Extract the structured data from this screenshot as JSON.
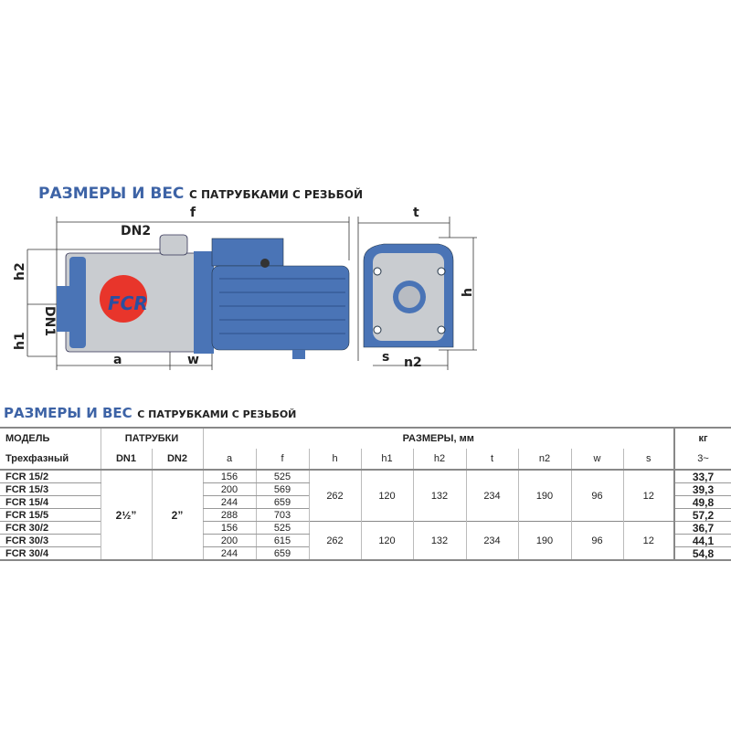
{
  "title_big": "РАЗМЕРЫ И ВЕС",
  "title_small": "С ПАТРУБКАМИ С РЕЗЬБОЙ",
  "drawing": {
    "labels": {
      "f": "f",
      "dn2": "DN2",
      "h2": "h2",
      "dn1": "DN1",
      "h1": "h1",
      "a": "a",
      "w": "w",
      "t": "t",
      "h": "h",
      "s": "s",
      "n2": "n2"
    },
    "logo": "FCR",
    "colors": {
      "pump_blue": "#4a74b6",
      "logo_red": "#e8352b",
      "steel": "#c9ccd0"
    }
  },
  "table": {
    "title_big": "РАЗМЕРЫ И ВЕС",
    "title_small": "С ПАТРУБКАМИ С РЕЗЬБОЙ",
    "h_model": "МОДЕЛЬ",
    "h_ports": "ПАТРУБКИ",
    "h_dims": "РАЗМЕРЫ, мм",
    "h_kg": "кг",
    "h_phase": "Трехфазный",
    "h_dn1": "DN1",
    "h_dn2": "DN2",
    "cols": [
      "a",
      "f",
      "h",
      "h1",
      "h2",
      "t",
      "n2",
      "w",
      "s"
    ],
    "h_kg_sub": "3~",
    "dn1": "2½”",
    "dn2": "2”",
    "rows": [
      {
        "model": "FCR 15/2",
        "a": "156",
        "f": "525",
        "kg": "33,7"
      },
      {
        "model": "FCR 15/3",
        "a": "200",
        "f": "569",
        "kg": "39,3"
      },
      {
        "model": "FCR 15/4",
        "a": "244",
        "f": "659",
        "kg": "49,8"
      },
      {
        "model": "FCR 15/5",
        "a": "288",
        "f": "703",
        "kg": "57,2"
      },
      {
        "model": "FCR 30/2",
        "a": "156",
        "f": "525",
        "kg": "36,7"
      },
      {
        "model": "FCR 30/3",
        "a": "200",
        "f": "615",
        "kg": "44,1"
      },
      {
        "model": "FCR 30/4",
        "a": "244",
        "f": "659",
        "kg": "54,8"
      }
    ],
    "group1": {
      "h": "262",
      "h1": "120",
      "h2": "132",
      "t": "234",
      "n2": "190",
      "w": "96",
      "s": "12"
    },
    "group2": {
      "h": "262",
      "h1": "120",
      "h2": "132",
      "t": "234",
      "n2": "190",
      "w": "96",
      "s": "12"
    }
  }
}
